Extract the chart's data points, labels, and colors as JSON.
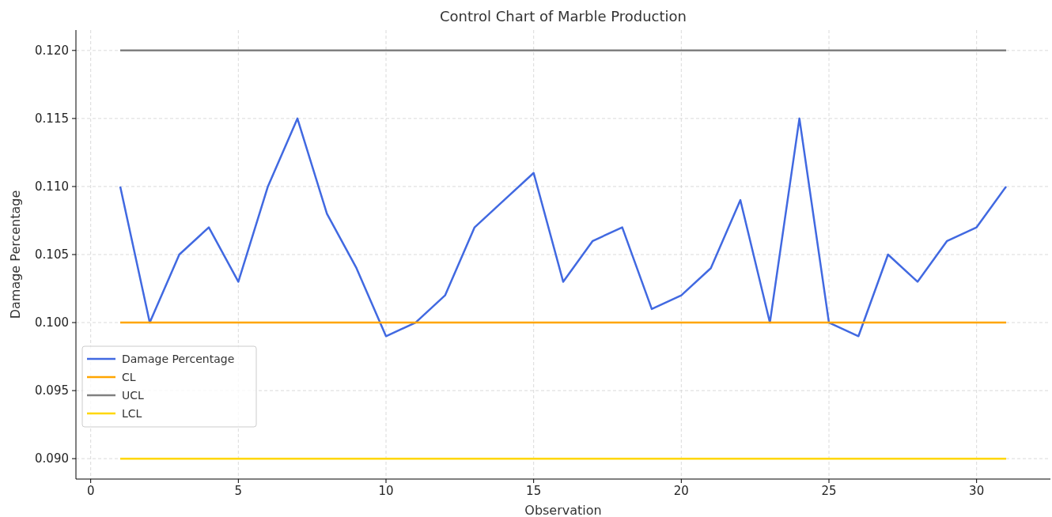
{
  "chart_data": {
    "type": "line",
    "title": "Control Chart of Marble Production",
    "xlabel": "Observation",
    "ylabel": "Damage Percentage",
    "xlim": [
      -0.5,
      32.5
    ],
    "xticks": [
      0,
      5,
      10,
      15,
      20,
      25,
      30
    ],
    "ylim": [
      0.0885,
      0.1215
    ],
    "yticks": [
      {
        "value": 0.09,
        "label": "0.090"
      },
      {
        "value": 0.095,
        "label": "0.095"
      },
      {
        "value": 0.1,
        "label": "0.100"
      },
      {
        "value": 0.105,
        "label": "0.105"
      },
      {
        "value": 0.11,
        "label": "0.110"
      },
      {
        "value": 0.115,
        "label": "0.115"
      },
      {
        "value": 0.12,
        "label": "0.120"
      }
    ],
    "grid": true,
    "legend": "lower left",
    "line_style": "solid",
    "marker": "none",
    "series": [
      {
        "name": "Damage Percentage",
        "color": "#4169e1",
        "x": [
          1,
          2,
          3,
          4,
          5,
          6,
          7,
          8,
          9,
          10,
          11,
          12,
          13,
          14,
          15,
          16,
          17,
          18,
          19,
          20,
          21,
          22,
          23,
          24,
          25,
          26,
          27,
          28,
          29,
          30,
          31
        ],
        "values": [
          0.11,
          0.1,
          0.105,
          0.107,
          0.103,
          0.11,
          0.115,
          0.108,
          0.104,
          0.099,
          0.1,
          0.102,
          0.107,
          0.109,
          0.111,
          0.103,
          0.106,
          0.107,
          0.101,
          0.102,
          0.104,
          0.109,
          0.1,
          0.115,
          0.1,
          0.099,
          0.105,
          0.103,
          0.106,
          0.107,
          0.11
        ]
      },
      {
        "name": "CL",
        "color": "#ffa500",
        "x": [
          1,
          31
        ],
        "values": [
          0.1,
          0.1
        ]
      },
      {
        "name": "UCL",
        "color": "#808080",
        "x": [
          1,
          31
        ],
        "values": [
          0.12,
          0.12
        ]
      },
      {
        "name": "LCL",
        "color": "#ffd700",
        "x": [
          1,
          31
        ],
        "values": [
          0.09,
          0.09
        ]
      }
    ]
  }
}
